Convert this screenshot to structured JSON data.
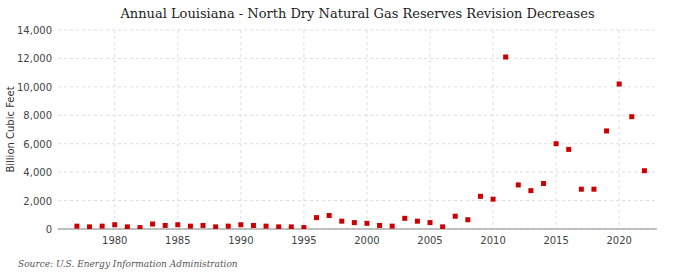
{
  "chart_data": {
    "type": "scatter",
    "title": "Annual Louisiana - North Dry Natural Gas Reserves Revision Decreases",
    "ylabel": "Billion Cubic Feet",
    "source": "Source: U.S. Energy Information Administration",
    "color": "#cc0000",
    "marker": "square",
    "grid": true,
    "xlim": [
      1975.5,
      2023
    ],
    "ylim": [
      0,
      14000
    ],
    "xticks": [
      1980,
      1985,
      1990,
      1995,
      2000,
      2005,
      2010,
      2015,
      2020
    ],
    "yticks": [
      0,
      {
        "value": 2000,
        "label": "2,000"
      },
      {
        "value": 4000,
        "label": "4,000"
      },
      {
        "value": 6000,
        "label": "6,000"
      },
      {
        "value": 8000,
        "label": "8,000"
      },
      {
        "value": 10000,
        "label": "10,000"
      },
      {
        "value": 12000,
        "label": "12,000"
      },
      {
        "value": 14000,
        "label": "14,000"
      }
    ],
    "x": [
      1977,
      1978,
      1979,
      1980,
      1981,
      1982,
      1983,
      1984,
      1985,
      1986,
      1987,
      1988,
      1989,
      1990,
      1991,
      1992,
      1993,
      1994,
      1995,
      1996,
      1997,
      1998,
      1999,
      2000,
      2001,
      2002,
      2003,
      2004,
      2005,
      2006,
      2007,
      2008,
      2009,
      2010,
      2011,
      2012,
      2013,
      2014,
      2015,
      2016,
      2017,
      2018,
      2019,
      2020,
      2021,
      2022
    ],
    "values": [
      200,
      150,
      200,
      300,
      150,
      100,
      350,
      250,
      300,
      200,
      250,
      150,
      200,
      300,
      250,
      200,
      150,
      150,
      100,
      800,
      950,
      550,
      450,
      400,
      250,
      200,
      750,
      550,
      450,
      150,
      900,
      650,
      2300,
      2100,
      12100,
      3100,
      2700,
      3200,
      6000,
      5600,
      2800,
      2800,
      6900,
      10200,
      7900,
      4100
    ]
  }
}
